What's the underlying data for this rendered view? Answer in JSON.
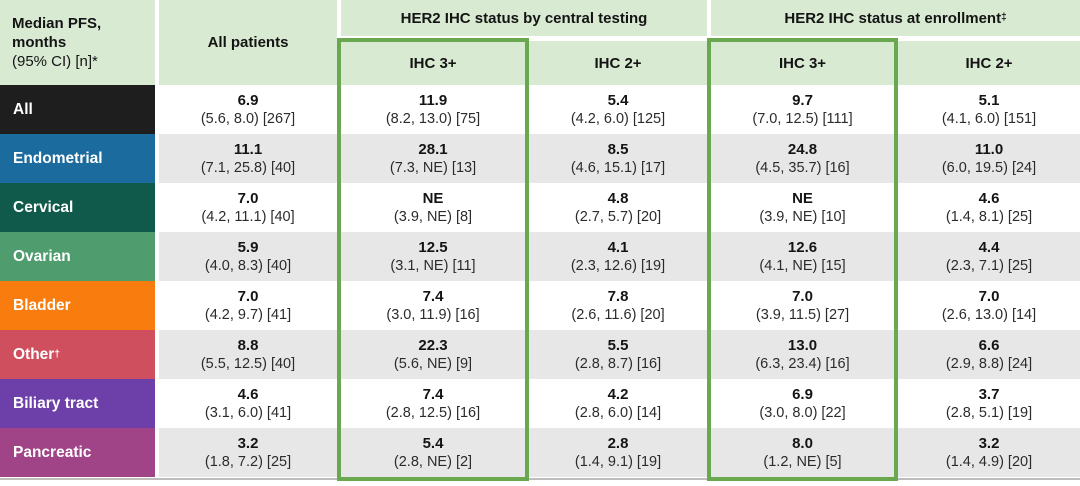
{
  "chart_data": {
    "type": "table",
    "title": "Median PFS, months (95% CI) [n]*",
    "corner": {
      "line1": "Median PFS, months",
      "line2": "(95% CI) [n]*"
    },
    "all_patients_header": "All patients",
    "groups": [
      {
        "label": "HER2 IHC status by central testing",
        "suffix": "",
        "subcolumns": [
          "IHC 3+",
          "IHC 2+"
        ]
      },
      {
        "label": "HER2 IHC status at enrollment",
        "suffix": "‡",
        "subcolumns": [
          "IHC 3+",
          "IHC 2+"
        ]
      }
    ],
    "highlighted_columns": [
      "IHC 3+ by central testing",
      "IHC 3+ at enrollment"
    ],
    "colors": {
      "header_bg": "#d9ead3",
      "highlight_border": "#6aa84f",
      "alt_row_bg": "#e7e7e7",
      "bottom_rule": "#bdbdbd"
    },
    "rows": [
      {
        "label": "All",
        "suffix": "",
        "color": "#1e1e1e",
        "cells": [
          {
            "value": "6.9",
            "ci": "(5.6, 8.0) [267]"
          },
          {
            "value": "11.9",
            "ci": "(8.2, 13.0) [75]"
          },
          {
            "value": "5.4",
            "ci": "(4.2, 6.0) [125]"
          },
          {
            "value": "9.7",
            "ci": "(7.0, 12.5) [111]"
          },
          {
            "value": "5.1",
            "ci": "(4.1, 6.0) [151]"
          }
        ]
      },
      {
        "label": "Endometrial",
        "suffix": "",
        "color": "#1c6b9e",
        "cells": [
          {
            "value": "11.1",
            "ci": "(7.1, 25.8) [40]"
          },
          {
            "value": "28.1",
            "ci": "(7.3, NE) [13]"
          },
          {
            "value": "8.5",
            "ci": "(4.6, 15.1) [17]"
          },
          {
            "value": "24.8",
            "ci": "(4.5, 35.7) [16]"
          },
          {
            "value": "11.0",
            "ci": "(6.0, 19.5) [24]"
          }
        ]
      },
      {
        "label": "Cervical",
        "suffix": "",
        "color": "#0f5a4a",
        "cells": [
          {
            "value": "7.0",
            "ci": "(4.2, 11.1) [40]"
          },
          {
            "value": "NE",
            "ci": "(3.9, NE) [8]"
          },
          {
            "value": "4.8",
            "ci": "(2.7, 5.7) [20]"
          },
          {
            "value": "NE",
            "ci": "(3.9, NE) [10]"
          },
          {
            "value": "4.6",
            "ci": "(1.4, 8.1) [25]"
          }
        ]
      },
      {
        "label": "Ovarian",
        "suffix": "",
        "color": "#4f9d6e",
        "cells": [
          {
            "value": "5.9",
            "ci": "(4.0, 8.3) [40]"
          },
          {
            "value": "12.5",
            "ci": "(3.1, NE) [11]"
          },
          {
            "value": "4.1",
            "ci": "(2.3, 12.6) [19]"
          },
          {
            "value": "12.6",
            "ci": "(4.1, NE) [15]"
          },
          {
            "value": "4.4",
            "ci": "(2.3, 7.1) [25]"
          }
        ]
      },
      {
        "label": "Bladder",
        "suffix": "",
        "color": "#f97d0e",
        "cells": [
          {
            "value": "7.0",
            "ci": "(4.2, 9.7) [41]"
          },
          {
            "value": "7.4",
            "ci": "(3.0, 11.9) [16]"
          },
          {
            "value": "7.8",
            "ci": "(2.6, 11.6) [20]"
          },
          {
            "value": "7.0",
            "ci": "(3.9, 11.5) [27]"
          },
          {
            "value": "7.0",
            "ci": "(2.6, 13.0) [14]"
          }
        ]
      },
      {
        "label": "Other",
        "suffix": "†",
        "color": "#d04f5e",
        "cells": [
          {
            "value": "8.8",
            "ci": "(5.5, 12.5) [40]"
          },
          {
            "value": "22.3",
            "ci": "(5.6, NE) [9]"
          },
          {
            "value": "5.5",
            "ci": "(2.8, 8.7) [16]"
          },
          {
            "value": "13.0",
            "ci": "(6.3, 23.4) [16]"
          },
          {
            "value": "6.6",
            "ci": "(2.9, 8.8) [24]"
          }
        ]
      },
      {
        "label": "Biliary tract",
        "suffix": "",
        "color": "#6d3fa9",
        "cells": [
          {
            "value": "4.6",
            "ci": "(3.1, 6.0) [41]"
          },
          {
            "value": "7.4",
            "ci": "(2.8, 12.5) [16]"
          },
          {
            "value": "4.2",
            "ci": "(2.8, 6.0) [14]"
          },
          {
            "value": "6.9",
            "ci": "(3.0, 8.0) [22]"
          },
          {
            "value": "3.7",
            "ci": "(2.8, 5.1) [19]"
          }
        ]
      },
      {
        "label": "Pancreatic",
        "suffix": "",
        "color": "#a04387",
        "cells": [
          {
            "value": "3.2",
            "ci": "(1.8, 7.2) [25]"
          },
          {
            "value": "5.4",
            "ci": "(2.8, NE) [2]"
          },
          {
            "value": "2.8",
            "ci": "(1.4, 9.1) [19]"
          },
          {
            "value": "8.0",
            "ci": "(1.2, NE) [5]"
          },
          {
            "value": "3.2",
            "ci": "(1.4, 4.9) [20]"
          }
        ]
      }
    ]
  }
}
